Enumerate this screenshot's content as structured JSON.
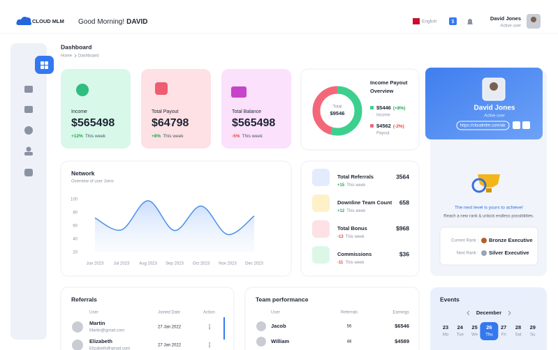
{
  "header": {
    "brand": "CLOUD MLM",
    "greeting": "Good Morning!",
    "user_first": "DAVID",
    "language": "English",
    "currency": "$",
    "user_name": "David Jones",
    "user_role": "Active user"
  },
  "page": {
    "title": "Dashboard",
    "breadcrumb": [
      "Home",
      "Dashboard"
    ]
  },
  "stats": [
    {
      "label": "Income",
      "value": "$565498",
      "change": "+12%",
      "period": "This week",
      "color": "#1fa36b"
    },
    {
      "label": "Total Payout",
      "value": "$64798",
      "change": "+8%",
      "period": "This week",
      "color": "#e0455a"
    },
    {
      "label": "Total Balance",
      "value": "$565498",
      "change": "-5%",
      "period": "This week",
      "color": "#c03cc0"
    }
  ],
  "payout_overview": {
    "title_lines": [
      "Income Payout",
      "Overview"
    ],
    "total_label": "Total",
    "total": "$9546",
    "income": {
      "value": "$5446",
      "change": "(+8%)",
      "label": "Income",
      "color": "#3ccf8e"
    },
    "payout": {
      "value": "$4562",
      "change": "(-2%)",
      "label": "Payout",
      "color": "#f2687a"
    }
  },
  "profile": {
    "name": "David Jones",
    "role": "Active user",
    "link": "https://cloudmlm.com/ak"
  },
  "network": {
    "title": "Network",
    "subtitle": "Overview of user Joins",
    "categories": [
      "Jun 2023",
      "Jul 2023",
      "Aug 2023",
      "Sep 2023",
      "Oct 2023",
      "Nov 2023",
      "Dec 2023"
    ],
    "values": [
      72,
      54,
      98,
      53,
      90,
      47,
      75
    ],
    "ylim": [
      20,
      100
    ],
    "yticks": [
      20,
      40,
      60,
      80,
      100
    ],
    "color": "#4a8de8"
  },
  "summary": [
    {
      "label": "Total Referrals",
      "value": "3564",
      "change": "+15",
      "period": "This week",
      "color": "#e2ecfd"
    },
    {
      "label": "Downline Team Count",
      "value": "658",
      "change": "+12",
      "period": "This week",
      "color": "#fdf1c8"
    },
    {
      "label": "Total Bonus",
      "value": "$968",
      "change": "-13",
      "period": "This week",
      "color": "#fde1e4"
    },
    {
      "label": "Commissions",
      "value": "$36",
      "change": "-11",
      "period": "This week",
      "color": "#dcf7e8"
    }
  ],
  "rank": {
    "headline": "The next level is yours to achieve!",
    "text": "Reach a new rank & unlock endless possibilities.",
    "current_label": "Current Rank :",
    "current": "Bronze Executive",
    "next_label": "Next Rank :",
    "next": "Silver Executive"
  },
  "referrals": {
    "title": "Referrals",
    "columns": [
      "User",
      "Joined Date",
      "Action"
    ],
    "rows": [
      {
        "name": "Martin",
        "email": "Martin@gmail.com",
        "date": "27 Jan 2022"
      },
      {
        "name": "Elizabeth",
        "email": "Elizabeth@gmail.com",
        "date": "27 Jan 2022"
      }
    ]
  },
  "team": {
    "title": "Team performance",
    "columns": [
      "User",
      "Referrals",
      "Earnings"
    ],
    "rows": [
      {
        "name": "Jacob",
        "referrals": "56",
        "earnings": "$6546"
      },
      {
        "name": "William",
        "referrals": "48",
        "earnings": "$4589"
      }
    ]
  },
  "events": {
    "title": "Events",
    "month": "December",
    "days": [
      {
        "date": "23",
        "day": "Mo"
      },
      {
        "date": "24",
        "day": "Tue"
      },
      {
        "date": "25",
        "day": "We"
      },
      {
        "date": "26",
        "day": "Thu",
        "selected": true
      },
      {
        "date": "27",
        "day": "Fri"
      },
      {
        "date": "28",
        "day": "Sat"
      },
      {
        "date": "29",
        "day": "Su"
      }
    ]
  }
}
